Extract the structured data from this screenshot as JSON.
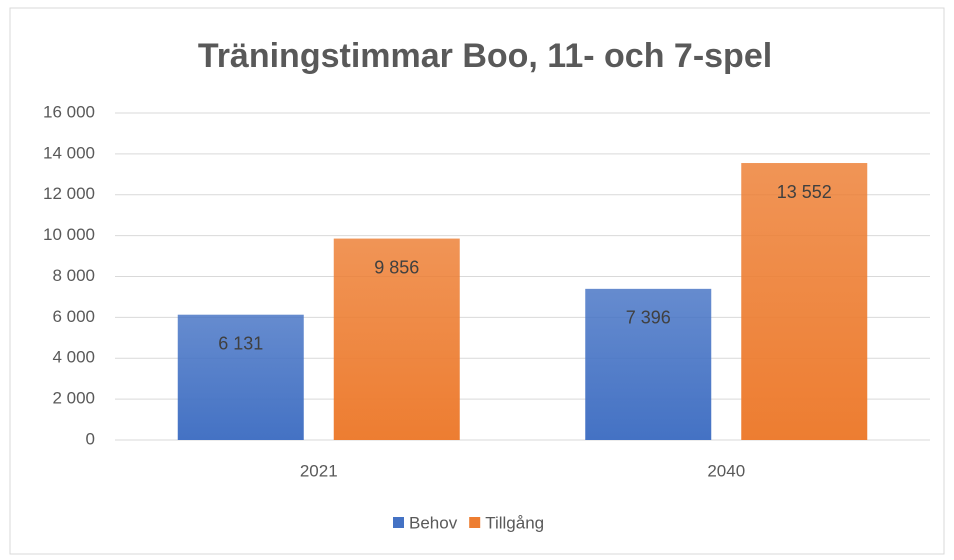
{
  "chart_data": {
    "type": "bar",
    "title": "Träningstimmar Boo, 11- och 7-spel",
    "categories": [
      "2021",
      "2040"
    ],
    "series": [
      {
        "name": "Behov",
        "color": "#4472c4",
        "values": [
          6131,
          7396
        ],
        "value_labels": [
          "6 131",
          "7 396"
        ]
      },
      {
        "name": "Tillgång",
        "color": "#ed7d31",
        "values": [
          9856,
          13552
        ],
        "value_labels": [
          "9 856",
          "13 552"
        ]
      }
    ],
    "ylim": [
      0,
      16000
    ],
    "yticks": [
      0,
      {
        "value": 2000,
        "label": "2 000"
      },
      {
        "value": 4000,
        "label": "4 000"
      },
      {
        "value": 6000,
        "label": "6 000"
      },
      {
        "value": 8000,
        "label": "8 000"
      },
      {
        "value": 10000,
        "label": "10 000"
      },
      {
        "value": 12000,
        "label": "12 000"
      },
      {
        "value": 14000,
        "label": "14 000"
      },
      {
        "value": 16000,
        "label": "16 000"
      }
    ],
    "grid": true,
    "legend": "bottom"
  }
}
